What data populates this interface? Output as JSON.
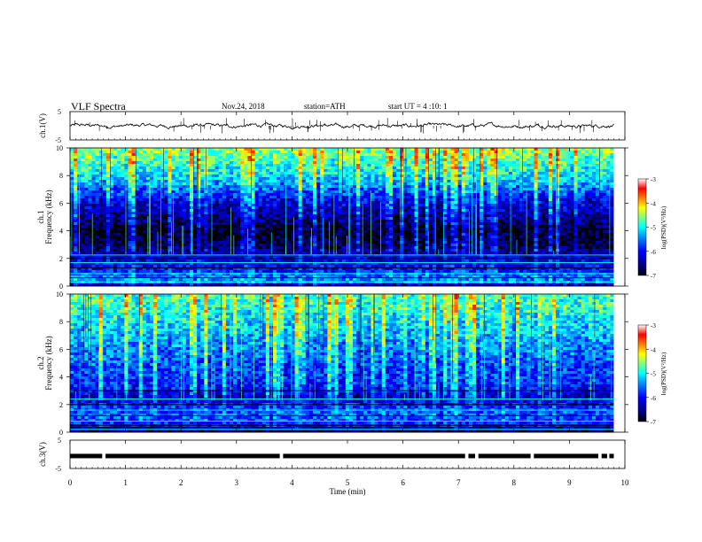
{
  "header": {
    "title": "VLF Spectra",
    "date": "Nov.24, 2018",
    "station": "station=ATH",
    "start_time": "start UT = 4 :10: 1"
  },
  "chart_data": [
    {
      "id": "ch1_voltage",
      "type": "line",
      "ylabel": "ch.1(V)",
      "ylim": [
        -5,
        5
      ],
      "yticks": [
        "5",
        "-5"
      ],
      "xlim": [
        0,
        10
      ],
      "baseline": 0,
      "noise_amplitude": 0.6,
      "spike_count": 70
    },
    {
      "id": "ch1_spectrogram",
      "type": "heatmap",
      "panel_label": "ch.1",
      "ylabel": "Frequency (kHz)",
      "ylim": [
        0,
        10
      ],
      "yticks": [
        "0",
        "2",
        "4",
        "6",
        "8",
        "10"
      ],
      "xlim": [
        0,
        10
      ],
      "colorbar": {
        "label": "log(PSD)(V²/Hz)",
        "range": [
          -7,
          -3
        ],
        "ticks": [
          "-3",
          "-4",
          "-5",
          "-6",
          "-7"
        ]
      },
      "profile": [
        {
          "f": 0.0,
          "v": -6.6
        },
        {
          "f": 0.3,
          "v": -5.4
        },
        {
          "f": 0.8,
          "v": -5.6
        },
        {
          "f": 1.2,
          "v": -6.0
        },
        {
          "f": 2.0,
          "v": -6.2
        },
        {
          "f": 2.6,
          "v": -6.6
        },
        {
          "f": 3.0,
          "v": -6.8
        },
        {
          "f": 4.0,
          "v": -6.9
        },
        {
          "f": 5.0,
          "v": -6.5
        },
        {
          "f": 6.0,
          "v": -6.2
        },
        {
          "f": 7.0,
          "v": -5.6
        },
        {
          "f": 8.0,
          "v": -5.1
        },
        {
          "f": 9.0,
          "v": -4.8
        },
        {
          "f": 10.0,
          "v": -4.5
        }
      ],
      "lines_khz": [
        0.3,
        0.6,
        0.9,
        1.3,
        1.7,
        2.0,
        2.25
      ]
    },
    {
      "id": "ch2_spectrogram",
      "type": "heatmap",
      "panel_label": "ch.2",
      "ylabel": "Frequency (kHz)",
      "ylim": [
        0,
        10
      ],
      "yticks": [
        "0",
        "2",
        "4",
        "6",
        "8",
        "10"
      ],
      "xlim": [
        0,
        10
      ],
      "colorbar": {
        "label": "log(PSD)(V²/Hz)",
        "range": [
          -7,
          -3
        ],
        "ticks": [
          "-3",
          "-4",
          "-5",
          "-6",
          "-7"
        ]
      },
      "profile": [
        {
          "f": 0.0,
          "v": -6.8
        },
        {
          "f": 0.5,
          "v": -6.0
        },
        {
          "f": 1.2,
          "v": -5.6
        },
        {
          "f": 2.0,
          "v": -5.9
        },
        {
          "f": 2.6,
          "v": -6.3
        },
        {
          "f": 3.2,
          "v": -6.0
        },
        {
          "f": 4.0,
          "v": -5.8
        },
        {
          "f": 5.0,
          "v": -5.7
        },
        {
          "f": 6.0,
          "v": -5.5
        },
        {
          "f": 7.0,
          "v": -5.3
        },
        {
          "f": 8.0,
          "v": -5.1
        },
        {
          "f": 9.0,
          "v": -4.9
        },
        {
          "f": 10.0,
          "v": -4.8
        }
      ],
      "lines_khz": [
        0.2,
        0.5,
        0.8,
        1.2,
        1.6,
        2.0,
        2.4,
        3.0
      ]
    },
    {
      "id": "ch3_voltage",
      "type": "line",
      "ylabel": "ch.3(V)",
      "ylim": [
        -5,
        5
      ],
      "yticks": [
        "5",
        "-5"
      ],
      "xlim": [
        0,
        10
      ],
      "level": -0.6,
      "gaps_min": [
        [
          0.58,
          0.64
        ],
        [
          3.78,
          3.84
        ],
        [
          7.12,
          7.18
        ],
        [
          7.3,
          7.36
        ],
        [
          8.3,
          8.36
        ],
        [
          9.52,
          9.58
        ],
        [
          9.68,
          9.72
        ]
      ]
    }
  ],
  "x_axis": {
    "label": "Time (min)",
    "ticks": [
      "0",
      "1",
      "2",
      "3",
      "4",
      "5",
      "6",
      "7",
      "8",
      "9",
      "10"
    ],
    "data_end": 9.8
  },
  "colors": {
    "axis": "#000000",
    "trace": "#000000",
    "colormap": [
      "#000000",
      "#00007f",
      "#0000ff",
      "#007fff",
      "#00ffff",
      "#7fff7f",
      "#ffff00",
      "#ff7f00",
      "#ff0000",
      "#ffffff"
    ]
  }
}
